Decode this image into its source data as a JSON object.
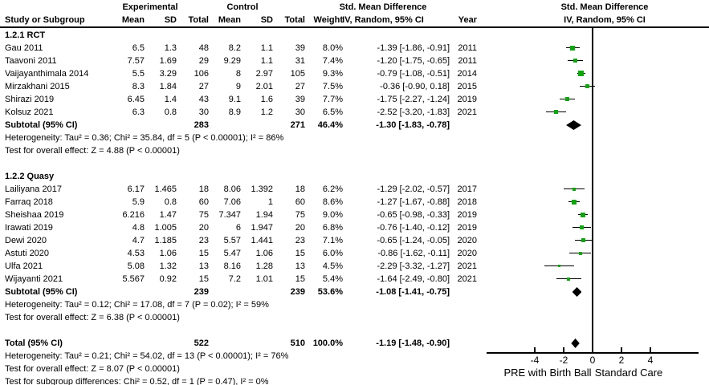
{
  "header": {
    "study_col": "Study or Subgroup",
    "group_exp": "Experimental",
    "group_ctrl": "Control",
    "mean": "Mean",
    "sd": "SD",
    "total": "Total",
    "weight": "Weight",
    "smd_line1": "Std. Mean Difference",
    "smd_line2": "IV, Random, 95% CI",
    "year": "Year"
  },
  "chart_data": {
    "type": "scatter",
    "subtype": "forest-plot-meta-analysis",
    "effect_measure": "Std. Mean Difference (IV, Random, 95% CI)",
    "axis": {
      "ticks": [
        -4,
        -2,
        0,
        2,
        4
      ],
      "range": [
        -7.3,
        7.3
      ],
      "label_left": "PRE with Birth Ball",
      "label_right": "Standard Care",
      "zero_line": 0
    },
    "colors": {
      "marker": "#0EA60E",
      "diamond": "#000000",
      "line": "#000000",
      "text": "#000000"
    },
    "sections": [
      {
        "title": "1.2.1 RCT",
        "studies": [
          {
            "name": "Gau 2011",
            "mean1": "6.5",
            "sd1": "1.3",
            "n1": "48",
            "mean2": "8.2",
            "sd2": "1.1",
            "n2": "39",
            "weight": "8.0%",
            "w": 8.0,
            "ci": "-1.39 [-1.86, -0.91]",
            "smd": -1.39,
            "lo": -1.86,
            "hi": -0.91,
            "year": "2011"
          },
          {
            "name": "Taavoni 2011",
            "mean1": "7.57",
            "sd1": "1.69",
            "n1": "29",
            "mean2": "9.29",
            "sd2": "1.1",
            "n2": "31",
            "weight": "7.4%",
            "w": 7.4,
            "ci": "-1.20 [-1.75, -0.65]",
            "smd": -1.2,
            "lo": -1.75,
            "hi": -0.65,
            "year": "2011"
          },
          {
            "name": "Vaijayanthimala 2014",
            "mean1": "5.5",
            "sd1": "3.29",
            "n1": "106",
            "mean2": "8",
            "sd2": "2.97",
            "n2": "105",
            "weight": "9.3%",
            "w": 9.3,
            "ci": "-0.79 [-1.08, -0.51]",
            "smd": -0.79,
            "lo": -1.08,
            "hi": -0.51,
            "year": "2014"
          },
          {
            "name": "Mirzakhani 2015",
            "mean1": "8.3",
            "sd1": "1.84",
            "n1": "27",
            "mean2": "9",
            "sd2": "2.01",
            "n2": "27",
            "weight": "7.5%",
            "w": 7.5,
            "ci": "-0.36 [-0.90, 0.18]",
            "smd": -0.36,
            "lo": -0.9,
            "hi": 0.18,
            "year": "2015"
          },
          {
            "name": "Shirazi 2019",
            "mean1": "6.45",
            "sd1": "1.4",
            "n1": "43",
            "mean2": "9.1",
            "sd2": "1.6",
            "n2": "39",
            "weight": "7.7%",
            "w": 7.7,
            "ci": "-1.75 [-2.27, -1.24]",
            "smd": -1.75,
            "lo": -2.27,
            "hi": -1.24,
            "year": "2019"
          },
          {
            "name": "Kolsuz 2021",
            "mean1": "6.3",
            "sd1": "0.8",
            "n1": "30",
            "mean2": "8.9",
            "sd2": "1.2",
            "n2": "30",
            "weight": "6.5%",
            "w": 6.5,
            "ci": "-2.52 [-3.20, -1.83]",
            "smd": -2.52,
            "lo": -3.2,
            "hi": -1.83,
            "year": "2021"
          }
        ],
        "subtotal": {
          "label": "Subtotal (95% CI)",
          "n1": "283",
          "n2": "271",
          "weight": "46.4%",
          "ci": "-1.30 [-1.83, -0.78]",
          "smd": -1.3,
          "lo": -1.83,
          "hi": -0.78
        },
        "heterogeneity": "Heterogeneity: Tau² = 0.36; Chi² = 35.84, df = 5 (P < 0.00001); I² = 86%",
        "overall_effect": "Test for overall effect: Z = 4.88 (P < 0.00001)"
      },
      {
        "title": "1.2.2 Quasy",
        "studies": [
          {
            "name": "Lailiyana 2017",
            "mean1": "6.17",
            "sd1": "1.465",
            "n1": "18",
            "mean2": "8.06",
            "sd2": "1.392",
            "n2": "18",
            "weight": "6.2%",
            "w": 6.2,
            "ci": "-1.29 [-2.02, -0.57]",
            "smd": -1.29,
            "lo": -2.02,
            "hi": -0.57,
            "year": "2017"
          },
          {
            "name": "Farraq 2018",
            "mean1": "5.9",
            "sd1": "0.8",
            "n1": "60",
            "mean2": "7.06",
            "sd2": "1",
            "n2": "60",
            "weight": "8.6%",
            "w": 8.6,
            "ci": "-1.27 [-1.67, -0.88]",
            "smd": -1.27,
            "lo": -1.67,
            "hi": -0.88,
            "year": "2018"
          },
          {
            "name": "Sheishaa 2019",
            "mean1": "6.216",
            "sd1": "1.47",
            "n1": "75",
            "mean2": "7.347",
            "sd2": "1.94",
            "n2": "75",
            "weight": "9.0%",
            "w": 9.0,
            "ci": "-0.65 [-0.98, -0.33]",
            "smd": -0.65,
            "lo": -0.98,
            "hi": -0.33,
            "year": "2019"
          },
          {
            "name": "Irawati 2019",
            "mean1": "4.8",
            "sd1": "1.005",
            "n1": "20",
            "mean2": "6",
            "sd2": "1.947",
            "n2": "20",
            "weight": "6.8%",
            "w": 6.8,
            "ci": "-0.76 [-1.40, -0.12]",
            "smd": -0.76,
            "lo": -1.4,
            "hi": -0.12,
            "year": "2019"
          },
          {
            "name": "Dewi 2020",
            "mean1": "4.7",
            "sd1": "1.185",
            "n1": "23",
            "mean2": "5.57",
            "sd2": "1.441",
            "n2": "23",
            "weight": "7.1%",
            "w": 7.1,
            "ci": "-0.65 [-1.24, -0.05]",
            "smd": -0.65,
            "lo": -1.24,
            "hi": -0.05,
            "year": "2020"
          },
          {
            "name": "Astuti 2020",
            "mean1": "4.53",
            "sd1": "1.06",
            "n1": "15",
            "mean2": "5.47",
            "sd2": "1.06",
            "n2": "15",
            "weight": "6.0%",
            "w": 6.0,
            "ci": "-0.86 [-1.62, -0.11]",
            "smd": -0.86,
            "lo": -1.62,
            "hi": -0.11,
            "year": "2020"
          },
          {
            "name": "Ulfa 2021",
            "mean1": "5.08",
            "sd1": "1.32",
            "n1": "13",
            "mean2": "8.16",
            "sd2": "1.28",
            "n2": "13",
            "weight": "4.5%",
            "w": 4.5,
            "ci": "-2.29 [-3.32, -1.27]",
            "smd": -2.29,
            "lo": -3.32,
            "hi": -1.27,
            "year": "2021"
          },
          {
            "name": "Wijayanti 2021",
            "mean1": "5.567",
            "sd1": "0.92",
            "n1": "15",
            "mean2": "7.2",
            "sd2": "1.01",
            "n2": "15",
            "weight": "5.4%",
            "w": 5.4,
            "ci": "-1.64 [-2.49, -0.80]",
            "smd": -1.64,
            "lo": -2.49,
            "hi": -0.8,
            "year": "2021"
          }
        ],
        "subtotal": {
          "label": "Subtotal (95% CI)",
          "n1": "239",
          "n2": "239",
          "weight": "53.6%",
          "ci": "-1.08 [-1.41, -0.75]",
          "smd": -1.08,
          "lo": -1.41,
          "hi": -0.75
        },
        "heterogeneity": "Heterogeneity: Tau² = 0.12; Chi² = 17.08, df = 7 (P = 0.02); I² = 59%",
        "overall_effect": "Test for overall effect: Z = 6.38 (P < 0.00001)"
      }
    ],
    "total": {
      "label": "Total (95% CI)",
      "n1": "522",
      "n2": "510",
      "weight": "100.0%",
      "ci": "-1.19 [-1.48, -0.90]",
      "smd": -1.19,
      "lo": -1.48,
      "hi": -0.9
    },
    "total_heterogeneity": "Heterogeneity: Tau² = 0.21; Chi² = 54.02, df = 13 (P < 0.00001); I² = 76%",
    "total_overall_effect": "Test for overall effect: Z = 8.07 (P < 0.00001)",
    "subgroup_differences": "Test for subgroup differences: Chi² = 0.52, df = 1 (P = 0.47), I² = 0%"
  }
}
